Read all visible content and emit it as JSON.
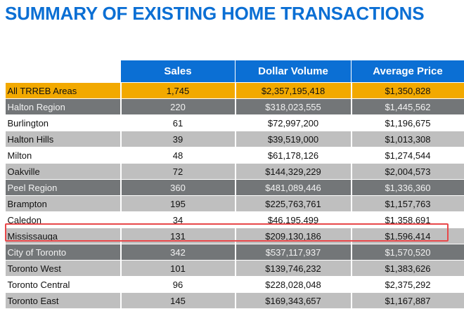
{
  "title": "SUMMARY OF EXISTING HOME TRANSACTIONS",
  "table": {
    "headers": [
      "",
      "Sales",
      "Dollar Volume",
      "Average Price"
    ],
    "rows": [
      {
        "area": "All TRREB Areas",
        "sales": "1,745",
        "volume": "$2,357,195,418",
        "avg": "$1,350,828",
        "style": "total"
      },
      {
        "area": "Halton Region",
        "sales": "220",
        "volume": "$318,023,555",
        "avg": "$1,445,562",
        "style": "region"
      },
      {
        "area": "Burlington",
        "sales": "61",
        "volume": "$72,997,200",
        "avg": "$1,196,675",
        "style": "plain"
      },
      {
        "area": "Halton Hills",
        "sales": "39",
        "volume": "$39,519,000",
        "avg": "$1,013,308",
        "style": "shaded"
      },
      {
        "area": "Milton",
        "sales": "48",
        "volume": "$61,178,126",
        "avg": "$1,274,544",
        "style": "plain"
      },
      {
        "area": "Oakville",
        "sales": "72",
        "volume": "$144,329,229",
        "avg": "$2,004,573",
        "style": "shaded"
      },
      {
        "area": "Peel Region",
        "sales": "360",
        "volume": "$481,089,446",
        "avg": "$1,336,360",
        "style": "region"
      },
      {
        "area": "Brampton",
        "sales": "195",
        "volume": "$225,763,761",
        "avg": "$1,157,763",
        "style": "shaded"
      },
      {
        "area": "Caledon",
        "sales": "34",
        "volume": "$46,195,499",
        "avg": "$1,358,691",
        "style": "plain"
      },
      {
        "area": "Mississauga",
        "sales": "131",
        "volume": "$209,130,186",
        "avg": "$1,596,414",
        "style": "shaded",
        "highlighted": true
      },
      {
        "area": "City of Toronto",
        "sales": "342",
        "volume": "$537,117,937",
        "avg": "$1,570,520",
        "style": "region"
      },
      {
        "area": "Toronto West",
        "sales": "101",
        "volume": "$139,746,232",
        "avg": "$1,383,626",
        "style": "shaded"
      },
      {
        "area": "Toronto Central",
        "sales": "96",
        "volume": "$228,028,048",
        "avg": "$2,375,292",
        "style": "plain"
      },
      {
        "area": "Toronto East",
        "sales": "145",
        "volume": "$169,343,657",
        "avg": "$1,167,887",
        "style": "shaded"
      }
    ]
  },
  "colors": {
    "title": "#0b6fd4",
    "header": "#0b6fd4",
    "total_row": "#f2a900",
    "region_row": "#737678",
    "shaded_row": "#bfbfbf",
    "highlight_border": "#e8484a"
  }
}
